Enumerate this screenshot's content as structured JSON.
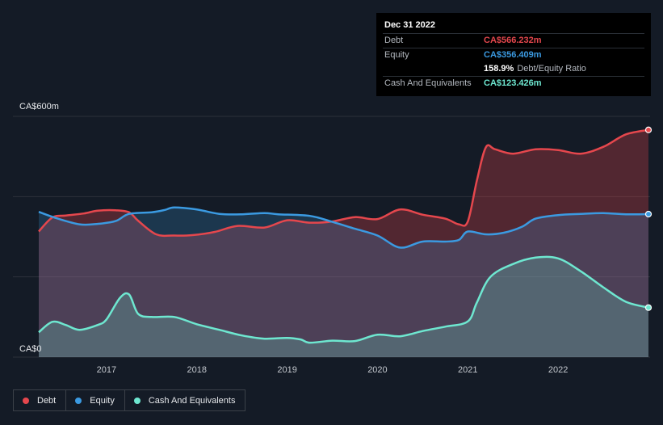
{
  "tooltip": {
    "date": "Dec 31 2022",
    "rows": [
      {
        "label": "Debt",
        "value": "CA$566.232m",
        "color": "#e5474d"
      },
      {
        "label": "Equity",
        "value": "CA$356.409m",
        "color": "#3b9ae1"
      },
      {
        "label": "",
        "value": "158.9%",
        "suffix": "Debt/Equity Ratio",
        "color": "#ffffff"
      },
      {
        "label": "Cash And Equivalents",
        "value": "CA$123.426m",
        "color": "#6ee7d0"
      }
    ]
  },
  "legend": [
    {
      "label": "Debt",
      "color": "#e5474d"
    },
    {
      "label": "Equity",
      "color": "#3b9ae1"
    },
    {
      "label": "Cash And Equivalents",
      "color": "#6ee7d0"
    }
  ],
  "chart_data": {
    "type": "area",
    "ylim": [
      0,
      600
    ],
    "y_tick_labels": [
      {
        "value": 600,
        "label": "CA$600m"
      },
      {
        "value": 0,
        "label": "CA$0"
      }
    ],
    "xlim": [
      2016.25,
      2023.0
    ],
    "x_ticks": [
      2017,
      2018,
      2019,
      2020,
      2021,
      2022
    ],
    "grid": true,
    "series": [
      {
        "name": "Debt",
        "color": "#e5474d",
        "points": [
          [
            2016.25,
            313
          ],
          [
            2016.4,
            348
          ],
          [
            2016.55,
            353
          ],
          [
            2016.75,
            358
          ],
          [
            2016.9,
            365
          ],
          [
            2017.1,
            366
          ],
          [
            2017.25,
            361
          ],
          [
            2017.35,
            340
          ],
          [
            2017.55,
            306
          ],
          [
            2017.75,
            303
          ],
          [
            2017.95,
            304
          ],
          [
            2018.2,
            312
          ],
          [
            2018.45,
            327
          ],
          [
            2018.75,
            323
          ],
          [
            2019.0,
            341
          ],
          [
            2019.25,
            335
          ],
          [
            2019.5,
            338
          ],
          [
            2019.75,
            349
          ],
          [
            2020.0,
            344
          ],
          [
            2020.25,
            368
          ],
          [
            2020.5,
            355
          ],
          [
            2020.75,
            345
          ],
          [
            2020.9,
            331
          ],
          [
            2021.0,
            338
          ],
          [
            2021.1,
            440
          ],
          [
            2021.2,
            523
          ],
          [
            2021.3,
            518
          ],
          [
            2021.5,
            507
          ],
          [
            2021.75,
            518
          ],
          [
            2022.0,
            516
          ],
          [
            2022.25,
            507
          ],
          [
            2022.5,
            524
          ],
          [
            2022.75,
            555
          ],
          [
            2023.0,
            566.232
          ]
        ]
      },
      {
        "name": "Equity",
        "color": "#3b9ae1",
        "points": [
          [
            2016.25,
            362
          ],
          [
            2016.45,
            346
          ],
          [
            2016.7,
            331
          ],
          [
            2016.9,
            332
          ],
          [
            2017.1,
            339
          ],
          [
            2017.25,
            357
          ],
          [
            2017.5,
            361
          ],
          [
            2017.65,
            367
          ],
          [
            2017.75,
            373
          ],
          [
            2018.0,
            368
          ],
          [
            2018.25,
            357
          ],
          [
            2018.5,
            356
          ],
          [
            2018.75,
            359
          ],
          [
            2018.9,
            356
          ],
          [
            2019.25,
            352
          ],
          [
            2019.5,
            337
          ],
          [
            2019.75,
            320
          ],
          [
            2020.0,
            303
          ],
          [
            2020.25,
            273
          ],
          [
            2020.5,
            288
          ],
          [
            2020.75,
            288
          ],
          [
            2020.9,
            292
          ],
          [
            2021.0,
            313
          ],
          [
            2021.2,
            306
          ],
          [
            2021.4,
            310
          ],
          [
            2021.6,
            325
          ],
          [
            2021.75,
            345
          ],
          [
            2022.0,
            354
          ],
          [
            2022.25,
            357
          ],
          [
            2022.5,
            359
          ],
          [
            2022.75,
            356
          ],
          [
            2023.0,
            356.409
          ]
        ]
      },
      {
        "name": "Cash And Equivalents",
        "color": "#6ee7d0",
        "points": [
          [
            2016.25,
            62
          ],
          [
            2016.4,
            88
          ],
          [
            2016.55,
            80
          ],
          [
            2016.7,
            68
          ],
          [
            2016.9,
            80
          ],
          [
            2017.0,
            94
          ],
          [
            2017.15,
            148
          ],
          [
            2017.25,
            156
          ],
          [
            2017.35,
            108
          ],
          [
            2017.5,
            100
          ],
          [
            2017.75,
            100
          ],
          [
            2018.0,
            82
          ],
          [
            2018.25,
            68
          ],
          [
            2018.5,
            54
          ],
          [
            2018.75,
            46
          ],
          [
            2019.0,
            48
          ],
          [
            2019.15,
            44
          ],
          [
            2019.25,
            36
          ],
          [
            2019.5,
            41
          ],
          [
            2019.75,
            40
          ],
          [
            2020.0,
            56
          ],
          [
            2020.25,
            52
          ],
          [
            2020.5,
            65
          ],
          [
            2020.75,
            76
          ],
          [
            2021.0,
            89
          ],
          [
            2021.1,
            136
          ],
          [
            2021.25,
            200
          ],
          [
            2021.5,
            232
          ],
          [
            2021.75,
            248
          ],
          [
            2022.0,
            246
          ],
          [
            2022.25,
            214
          ],
          [
            2022.5,
            174
          ],
          [
            2022.75,
            138
          ],
          [
            2023.0,
            123.426
          ]
        ]
      }
    ]
  }
}
